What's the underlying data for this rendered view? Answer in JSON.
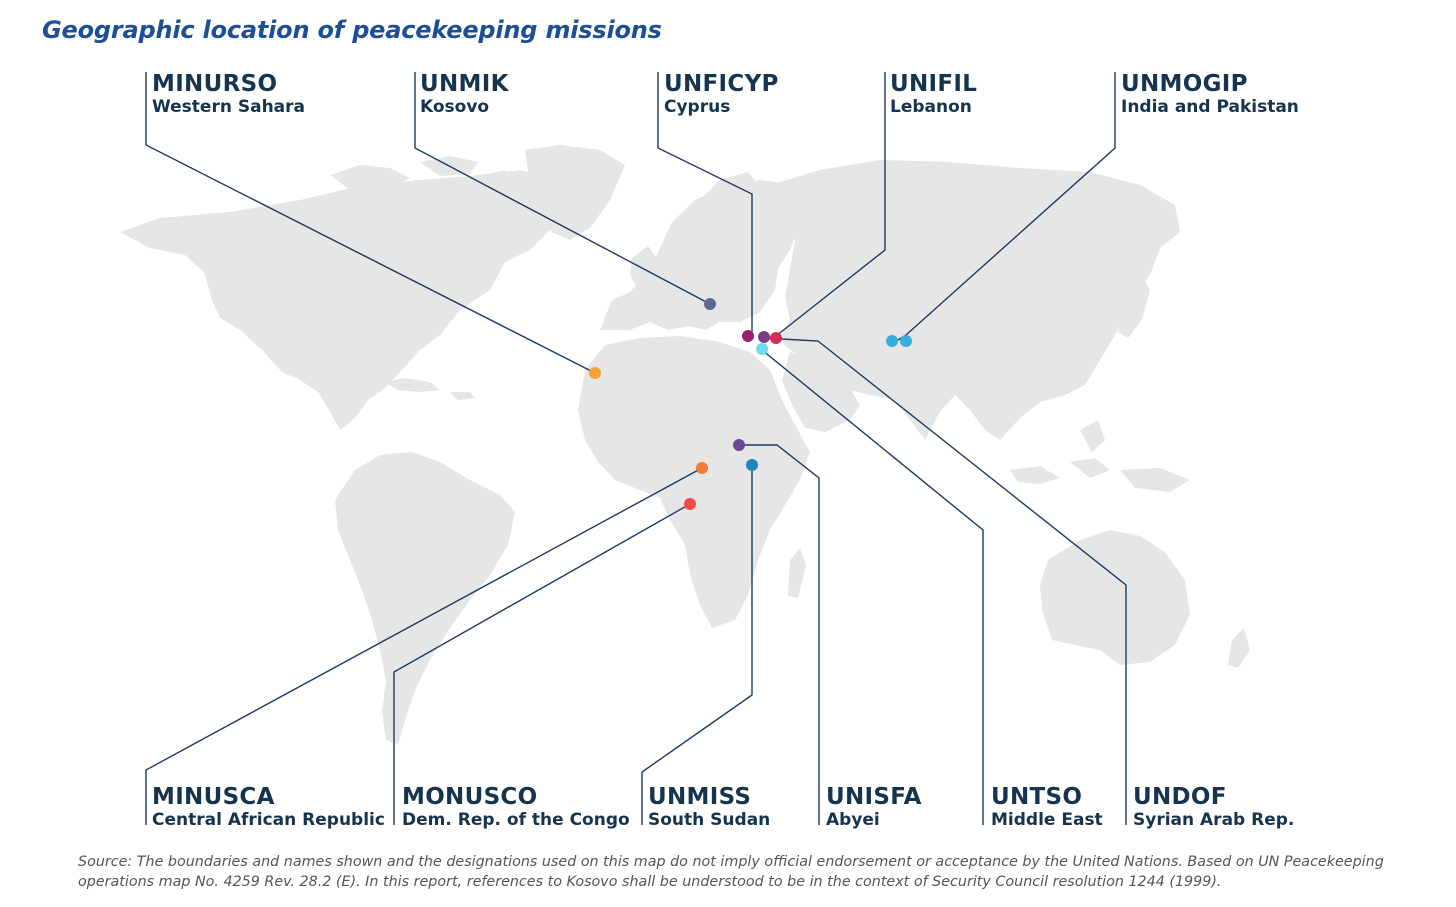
{
  "title": "Geographic location of peacekeeping missions",
  "missions": [
    {
      "code": "MINURSO",
      "place": "Western Sahara",
      "color": "#f7a135"
    },
    {
      "code": "UNMIK",
      "place": "Kosovo",
      "color": "#5a6a92"
    },
    {
      "code": "UNFICYP",
      "place": "Cyprus",
      "color": "#9c1d6e"
    },
    {
      "code": "UNIFIL",
      "place": "Lebanon",
      "color": "#d12c5a"
    },
    {
      "code": "UNMOGIP",
      "place": "India and Pakistan",
      "color": "#3aaed8"
    },
    {
      "code": "MINUSCA",
      "place": "Central African Republic",
      "color": "#f27c3a"
    },
    {
      "code": "MONUSCO",
      "place": "Dem. Rep. of the Congo",
      "color": "#ef4a4a"
    },
    {
      "code": "UNMISS",
      "place": "South Sudan",
      "color": "#1f86bf"
    },
    {
      "code": "UNISFA",
      "place": "Abyei",
      "color": "#6a4a95"
    },
    {
      "code": "UNTSO",
      "place": "Middle East",
      "color": "#6fdcec"
    },
    {
      "code": "UNDOF",
      "place": "Syrian Arab Rep.",
      "color": "#7a3c86"
    }
  ],
  "colors": {
    "title": "#1c4f96",
    "land": "#e6e6e6",
    "leader_line": "#1e3a5c",
    "label_text": "#16344e"
  },
  "source_note": "Source: The boundaries and names shown and the designations used on this map do not imply official endorsement or acceptance by the United Nations. Based on UN Peacekeeping operations map No. 4259 Rev. 28.2 (E). In this report, references to Kosovo shall be understood to be in the context of Security Council resolution 1244 (1999)."
}
